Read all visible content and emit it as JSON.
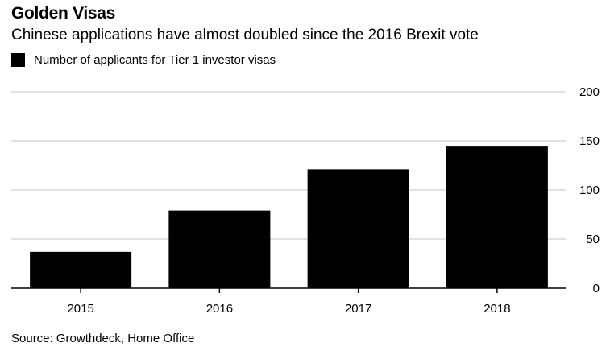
{
  "colors": {
    "bar": "#000000",
    "grid": "#d9d9d9",
    "axis": "#000000"
  },
  "chart_data": {
    "type": "bar",
    "title": "Golden Visas",
    "subtitle": "Chinese applications have almost doubled since the 2016 Brexit vote",
    "legend": "Number of applicants for Tier 1 investor visas",
    "categories": [
      "2015",
      "2016",
      "2017",
      "2018"
    ],
    "values": [
      37,
      79,
      121,
      145
    ],
    "y_ticks": [
      0,
      50,
      100,
      150,
      200
    ],
    "ylim": [
      0,
      200
    ],
    "xlabel": "",
    "ylabel": "",
    "grid": true,
    "y_axis_side": "right",
    "source": "Source: Growthdeck, Home Office"
  }
}
